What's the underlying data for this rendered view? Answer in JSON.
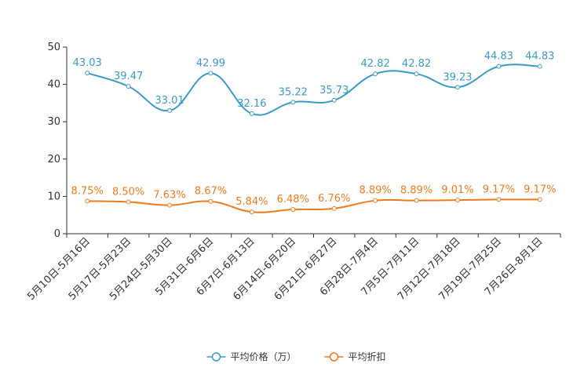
{
  "chart_data": {
    "type": "line",
    "title": "",
    "xlabel": "",
    "ylabel": "",
    "ylim": [
      0,
      50
    ],
    "yticks": [
      0,
      10,
      20,
      30,
      40,
      50
    ],
    "grid": false,
    "legend_position": "bottom",
    "categories": [
      "5月10日-5月16日",
      "5月17日-5月23日",
      "5月24日-5月30日",
      "5月31日-6月6日",
      "6月7日-6月13日",
      "6月14日-6月20日",
      "6月21日-6月27日",
      "6月28日-7月4日",
      "7月5日-7月11日",
      "7月12日-7月18日",
      "7月19日-7月25日",
      "7月26日-8月1日"
    ],
    "series": [
      {
        "name": "平均价格（万）",
        "color": "#3a9bc9",
        "values": [
          43.03,
          39.47,
          33.01,
          42.99,
          32.16,
          35.22,
          35.73,
          42.82,
          42.82,
          39.23,
          44.83,
          44.83
        ],
        "labels": [
          "43.03",
          "39.47",
          "33.01",
          "42.99",
          "32.16",
          "35.22",
          "35.73",
          "42.82",
          "42.82",
          "39.23",
          "44.83",
          "44.83"
        ]
      },
      {
        "name": "平均折扣",
        "color": "#f07b1c",
        "values": [
          8.75,
          8.5,
          7.63,
          8.67,
          5.84,
          6.48,
          6.76,
          8.89,
          8.89,
          9.01,
          9.17,
          9.17
        ],
        "labels": [
          "8.75%",
          "8.50%",
          "7.63%",
          "8.67%",
          "5.84%",
          "6.48%",
          "6.76%",
          "8.89%",
          "8.89%",
          "9.01%",
          "9.17%",
          "9.17%"
        ]
      }
    ]
  }
}
